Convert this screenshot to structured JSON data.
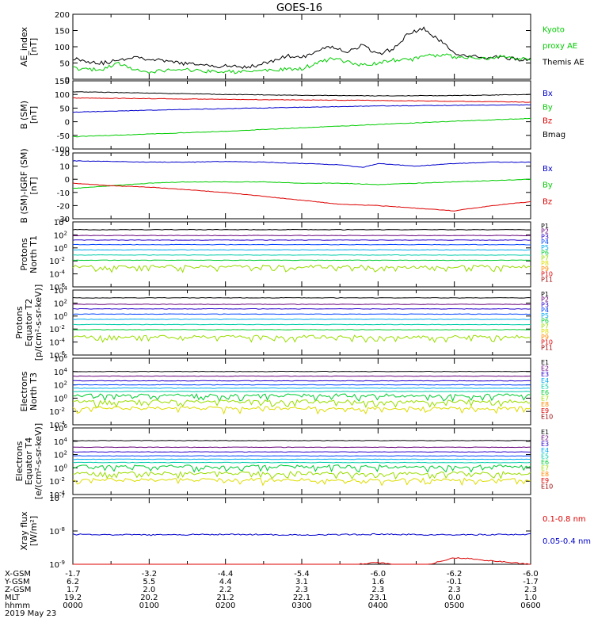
{
  "title": "GOES-16",
  "colors": {
    "black": "#000000",
    "green": "#00cc00",
    "blue": "#0000cc",
    "red": "#dd0000",
    "p": [
      "#000000",
      "#66007a",
      "#2a00cc",
      "#0044ff",
      "#00aaee",
      "#00ccaa",
      "#00cc33",
      "#99dd00",
      "#dddd00",
      "#ff8800",
      "#dd0000",
      "#990000"
    ]
  },
  "time_axis": {
    "ticks": [
      "0000",
      "0100",
      "0200",
      "0300",
      "0400",
      "0500",
      "0600"
    ],
    "rows": [
      {
        "label": "X-GSM",
        "values": [
          "-1.7",
          "-3.2",
          "-4.4",
          "-5.4",
          "-6.0",
          "-6.2",
          "-6.0"
        ]
      },
      {
        "label": "Y-GSM",
        "values": [
          "6.2",
          "5.5",
          "4.4",
          "3.1",
          "1.6",
          "-0.1",
          "-1.7"
        ]
      },
      {
        "label": "Z-GSM",
        "values": [
          "1.7",
          "2.0",
          "2.2",
          "2.3",
          "2.3",
          "2.3",
          "2.3"
        ]
      },
      {
        "label": "MLT",
        "values": [
          "19.2",
          "20.2",
          "21.2",
          "22.1",
          "23.1",
          "0.0",
          "1.0"
        ]
      },
      {
        "label": "hhmm",
        "values": [
          "0000",
          "0100",
          "0200",
          "0300",
          "0400",
          "0500",
          "0600"
        ]
      }
    ],
    "date": "2019 May 23"
  },
  "chart_data": [
    {
      "type": "line",
      "ylabel": [
        "AE_index",
        "[nT]"
      ],
      "ylim": [
        0,
        200
      ],
      "yticks": [
        "0",
        "50",
        "100",
        "150",
        "200"
      ],
      "legend": [
        {
          "text": "Kyoto",
          "color": "#00cc00"
        },
        {
          "text": "proxy AE",
          "color": "#00cc00"
        },
        {
          "text": "Themis AE",
          "color": "#000000"
        }
      ],
      "series": [
        {
          "name": "Themis AE",
          "color": "#000000",
          "x": [
            0,
            0.2,
            0.4,
            0.6,
            0.8,
            1.0,
            1.2,
            1.4,
            1.6,
            1.8,
            2.0,
            2.2,
            2.4,
            2.6,
            2.8,
            3.0,
            3.2,
            3.4,
            3.6,
            3.8,
            4.0,
            4.2,
            4.4,
            4.6,
            4.8,
            5.0,
            5.2,
            5.4,
            5.6,
            5.8,
            6.0
          ],
          "y": [
            65,
            55,
            50,
            58,
            70,
            62,
            55,
            50,
            45,
            42,
            40,
            38,
            42,
            55,
            72,
            65,
            90,
            100,
            85,
            105,
            75,
            95,
            140,
            155,
            120,
            82,
            70,
            65,
            68,
            62,
            60
          ]
        },
        {
          "name": "Kyoto proxy AE",
          "color": "#00cc00",
          "x": [
            0,
            0.2,
            0.4,
            0.6,
            0.8,
            1.0,
            1.2,
            1.4,
            1.6,
            1.8,
            2.0,
            2.2,
            2.4,
            2.6,
            2.8,
            3.0,
            3.2,
            3.4,
            3.6,
            3.8,
            4.0,
            4.2,
            4.4,
            4.6,
            4.8,
            5.0,
            5.2,
            5.4,
            5.6,
            5.8,
            6.0
          ],
          "y": [
            35,
            28,
            32,
            48,
            30,
            22,
            28,
            30,
            26,
            25,
            24,
            22,
            25,
            28,
            30,
            32,
            50,
            62,
            55,
            42,
            48,
            60,
            58,
            70,
            75,
            70,
            68,
            65,
            68,
            65,
            62
          ]
        }
      ]
    },
    {
      "type": "line",
      "ylabel": [
        "B (SM)",
        "[nT]"
      ],
      "ylim": [
        -100,
        150
      ],
      "yticks": [
        "-100",
        "-50",
        "0",
        "50",
        "100",
        "150"
      ],
      "legend": [
        {
          "text": "Bx",
          "color": "#0000cc"
        },
        {
          "text": "By",
          "color": "#00cc00"
        },
        {
          "text": "Bz",
          "color": "#dd0000"
        },
        {
          "text": "Bmag",
          "color": "#000000"
        }
      ],
      "series": [
        {
          "name": "Bmag",
          "color": "#000000",
          "x": [
            0,
            1,
            2,
            3,
            4,
            5,
            6
          ],
          "y": [
            110,
            105,
            100,
            97,
            95,
            96,
            100
          ]
        },
        {
          "name": "Bz",
          "color": "#dd0000",
          "x": [
            0,
            1,
            2,
            3,
            4,
            5,
            6
          ],
          "y": [
            87,
            85,
            82,
            80,
            78,
            75,
            72
          ]
        },
        {
          "name": "Bx",
          "color": "#0000cc",
          "x": [
            0,
            1,
            2,
            3,
            4,
            5,
            6
          ],
          "y": [
            35,
            42,
            48,
            53,
            58,
            60,
            62
          ]
        },
        {
          "name": "By",
          "color": "#00cc00",
          "x": [
            0,
            1,
            2,
            3,
            4,
            5,
            6
          ],
          "y": [
            -55,
            -45,
            -35,
            -22,
            -10,
            2,
            12
          ]
        }
      ]
    },
    {
      "type": "line",
      "ylabel": [
        "B (SM)-IGRF (SM)",
        "[nT]"
      ],
      "ylim": [
        -30,
        20
      ],
      "yticks": [
        "-30",
        "-20",
        "-10",
        "0",
        "10",
        "20"
      ],
      "legend": [
        {
          "text": "Bx",
          "color": "#0000cc"
        },
        {
          "text": "By",
          "color": "#00cc00"
        },
        {
          "text": "Bz",
          "color": "#dd0000"
        }
      ],
      "series": [
        {
          "name": "Bx",
          "color": "#0000cc",
          "x": [
            0,
            0.5,
            1,
            1.5,
            2,
            2.5,
            3,
            3.5,
            3.8,
            4.0,
            4.5,
            5,
            5.5,
            6
          ],
          "y": [
            14,
            13.5,
            13,
            13,
            13.5,
            13,
            12,
            11,
            9,
            12,
            10,
            12,
            13,
            13
          ]
        },
        {
          "name": "By",
          "color": "#00cc00",
          "x": [
            0,
            0.5,
            1,
            1.5,
            2,
            2.5,
            3,
            3.5,
            4,
            4.5,
            5,
            5.5,
            6
          ],
          "y": [
            -7,
            -5,
            -3,
            -2,
            -2,
            -2,
            -3,
            -3,
            -4,
            -3,
            -2,
            -1,
            0
          ]
        },
        {
          "name": "Bz",
          "color": "#dd0000",
          "x": [
            0,
            0.5,
            1,
            1.5,
            2,
            2.5,
            3,
            3.5,
            4,
            4.5,
            5,
            5.5,
            6
          ],
          "y": [
            -3,
            -5,
            -6,
            -8,
            -10,
            -13,
            -16,
            -19,
            -20,
            -22,
            -24,
            -20,
            -17
          ]
        }
      ]
    },
    {
      "type": "line",
      "scale": "log",
      "ylabel": [
        "Protons",
        "North T1"
      ],
      "ylim": [
        -6,
        4
      ],
      "yticks": [
        "10^4",
        "10^2",
        "10^0",
        "10^-2",
        "10^-4",
        "10^-6"
      ],
      "legend": [
        "P1",
        "P2",
        "P3",
        "P4",
        "P5",
        "P6",
        "P7",
        "P8",
        "P9",
        "P10",
        "P11"
      ],
      "levels": [
        2.8,
        1.9,
        1.2,
        0.5,
        -0.3,
        -1.1,
        -1.9,
        -2.9,
        null,
        null,
        null
      ]
    },
    {
      "type": "line",
      "scale": "log",
      "ylabel": [
        "Protons",
        "Equator T2",
        "[p/(cm²-s-sr-keV)]"
      ],
      "ylim": [
        -6,
        4
      ],
      "yticks": [
        "10^4",
        "10^2",
        "10^0",
        "10^-2",
        "10^-4",
        "10^-6"
      ],
      "legend": [
        "P1",
        "P2",
        "P3",
        "P4",
        "P5",
        "P6",
        "P7",
        "P8",
        "P9",
        "P10",
        "P11"
      ],
      "levels": [
        2.8,
        1.8,
        1.1,
        0.3,
        -0.5,
        -1.3,
        -2.1,
        -3.2,
        null,
        null,
        null
      ]
    },
    {
      "type": "line",
      "scale": "log",
      "ylabel": [
        "Electrons",
        "North T3"
      ],
      "ylim": [
        -4,
        6
      ],
      "yticks": [
        "10^6",
        "10^4",
        "10^2",
        "10^0",
        "10^-2",
        "10^-4"
      ],
      "legend": [
        "E1",
        "E2",
        "E3",
        "E4",
        "E5",
        "E6",
        "E7",
        "E8",
        "E9",
        "E10"
      ],
      "levels": [
        4.0,
        3.3,
        2.6,
        2.0,
        1.5,
        1.0,
        0.4,
        -0.5,
        -1.5,
        null
      ]
    },
    {
      "type": "line",
      "scale": "log",
      "ylabel": [
        "Electrons",
        "Equator T4",
        "[e/(cm²-s-sr-keV)]"
      ],
      "ylim": [
        -4,
        6
      ],
      "yticks": [
        "10^6",
        "10^4",
        "10^2",
        "10^0",
        "10^-2",
        "10^-4"
      ],
      "legend": [
        "E1",
        "E2",
        "E3",
        "E4",
        "E5",
        "E6",
        "E7",
        "E8",
        "E9",
        "E10"
      ],
      "levels": [
        4.1,
        3.1,
        2.4,
        1.8,
        1.3,
        0.8,
        0.2,
        -0.8,
        -1.8,
        null
      ]
    },
    {
      "type": "line",
      "scale": "log",
      "ylabel": [
        "Xray flux",
        "[W/m²]"
      ],
      "ylim": [
        -9,
        -7
      ],
      "yticks": [
        "10^-7",
        "10^-8",
        "10^-9"
      ],
      "legend": [
        {
          "text": "0.1-0.8 nm",
          "color": "#dd0000"
        },
        {
          "text": "0.05-0.4 nm",
          "color": "#0000cc"
        }
      ],
      "series": [
        {
          "name": "0.05-0.4 nm",
          "color": "#0000cc",
          "x": [
            0,
            1,
            2,
            3,
            4,
            5,
            6
          ],
          "y": [
            -8.1,
            -8.12,
            -8.1,
            -8.12,
            -8.1,
            -8.12,
            -8.1
          ]
        },
        {
          "name": "0.1-0.8 nm",
          "color": "#dd0000",
          "x": [
            0,
            1,
            2,
            3,
            3.5,
            4,
            4.5,
            5,
            5.5,
            6
          ],
          "y": [
            -9.3,
            -9.3,
            -9.3,
            -9.3,
            -9.05,
            -8.95,
            -9.1,
            -8.8,
            -8.9,
            -9.0
          ]
        }
      ]
    }
  ]
}
